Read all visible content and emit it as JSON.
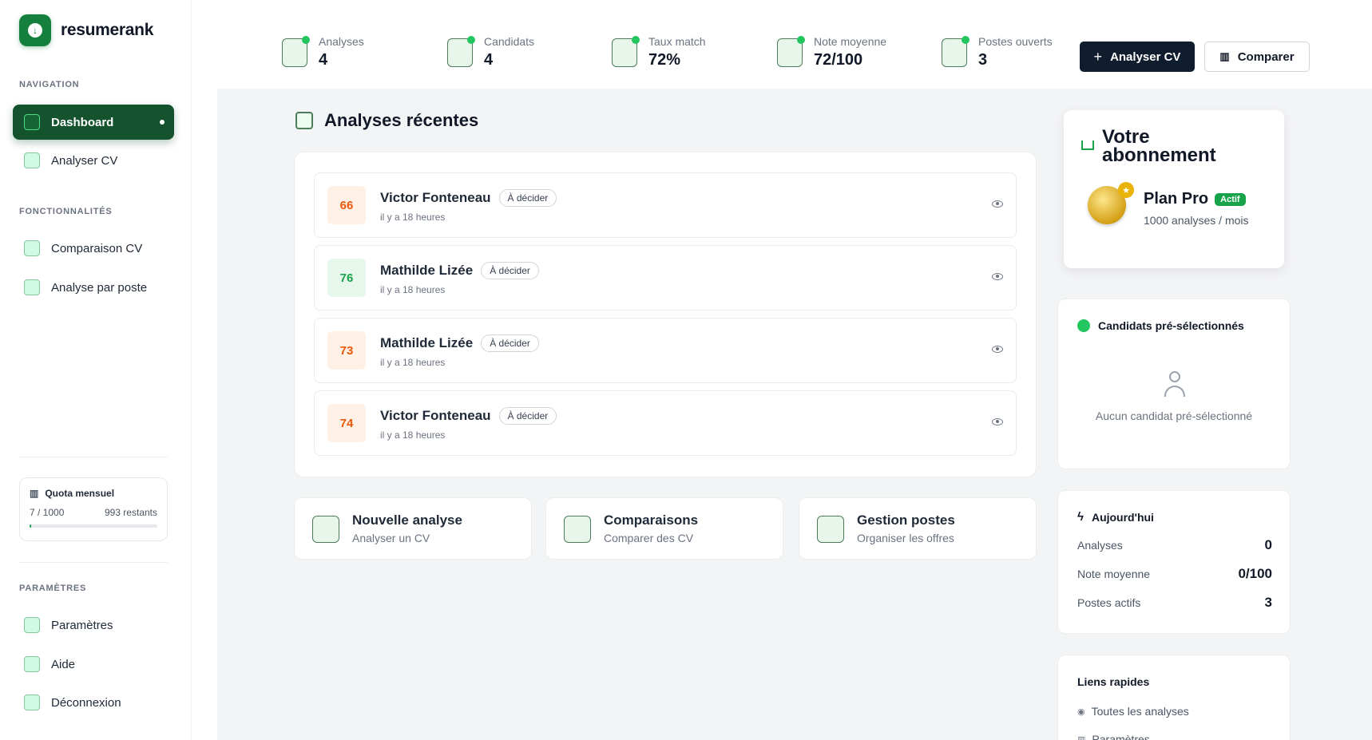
{
  "brand": {
    "name": "resumerank",
    "logo_icon": "download-shield-icon",
    "accent": "#15803d"
  },
  "sidebar": {
    "nav_header": "NAVIGATION",
    "features_header": "FONCTIONNALITÉS",
    "settings_header": "PARAMÈTRES",
    "items": [
      {
        "label": "Dashboard",
        "icon": "dashboard-icon"
      },
      {
        "label": "Analyser CV",
        "icon": "search-doc-icon"
      },
      {
        "label": "Comparaison CV",
        "icon": "compare-icon"
      },
      {
        "label": "Analyse par poste",
        "icon": "briefcase-icon"
      },
      {
        "label": "Paramètres",
        "icon": "gear-icon"
      },
      {
        "label": "Aide",
        "icon": "help-icon"
      },
      {
        "label": "Déconnexion",
        "icon": "logout-icon"
      }
    ],
    "quota": {
      "title": "Quota mensuel",
      "used": "7 / 1000",
      "remaining": "993 restants",
      "progress": 0.007
    }
  },
  "stats": [
    {
      "label": "Analyses",
      "value": "4"
    },
    {
      "label": "Candidats",
      "value": "4"
    },
    {
      "label": "Taux match",
      "value": "72%"
    },
    {
      "label": "Note moyenne",
      "value": "72/100"
    },
    {
      "label": "Postes ouverts",
      "value": "3"
    }
  ],
  "toolbar": {
    "analyze_label": "Analyser CV",
    "compare_label": "Comparer"
  },
  "recent": {
    "title": "Analyses récentes",
    "rows": [
      {
        "score": "66",
        "name": "Victor Fonteneau",
        "badge": "À décider",
        "time": "il y a 18 heures",
        "tone": "orange"
      },
      {
        "score": "76",
        "name": "Mathilde Lizée",
        "badge": "À décider",
        "time": "il y a 18 heures",
        "tone": "green"
      },
      {
        "score": "73",
        "name": "Mathilde Lizée",
        "badge": "À décider",
        "time": "il y a 18 heures",
        "tone": "orange"
      },
      {
        "score": "74",
        "name": "Victor Fonteneau",
        "badge": "À décider",
        "time": "il y a 18 heures",
        "tone": "orange"
      }
    ]
  },
  "actions": [
    {
      "title": "Nouvelle analyse",
      "subtitle": "Analyser un CV"
    },
    {
      "title": "Comparaisons",
      "subtitle": "Comparer des CV"
    },
    {
      "title": "Gestion postes",
      "subtitle": "Organiser les offres"
    }
  ],
  "subscription": {
    "title": "Votre abonnement",
    "plan": "Plan Pro",
    "status": "Actif",
    "quota": "1000 analyses / mois"
  },
  "preselected": {
    "title": "Candidats pré-sélectionnés",
    "empty": "Aucun candidat pré-sélectionné"
  },
  "today": {
    "title": "Aujourd'hui",
    "rows": [
      {
        "label": "Analyses",
        "value": "0"
      },
      {
        "label": "Note moyenne",
        "value": "0/100"
      },
      {
        "label": "Postes actifs",
        "value": "3"
      }
    ]
  },
  "quick_links": {
    "title": "Liens rapides",
    "items": [
      {
        "label": "Toutes les analyses"
      },
      {
        "label": "Paramètres"
      }
    ]
  }
}
